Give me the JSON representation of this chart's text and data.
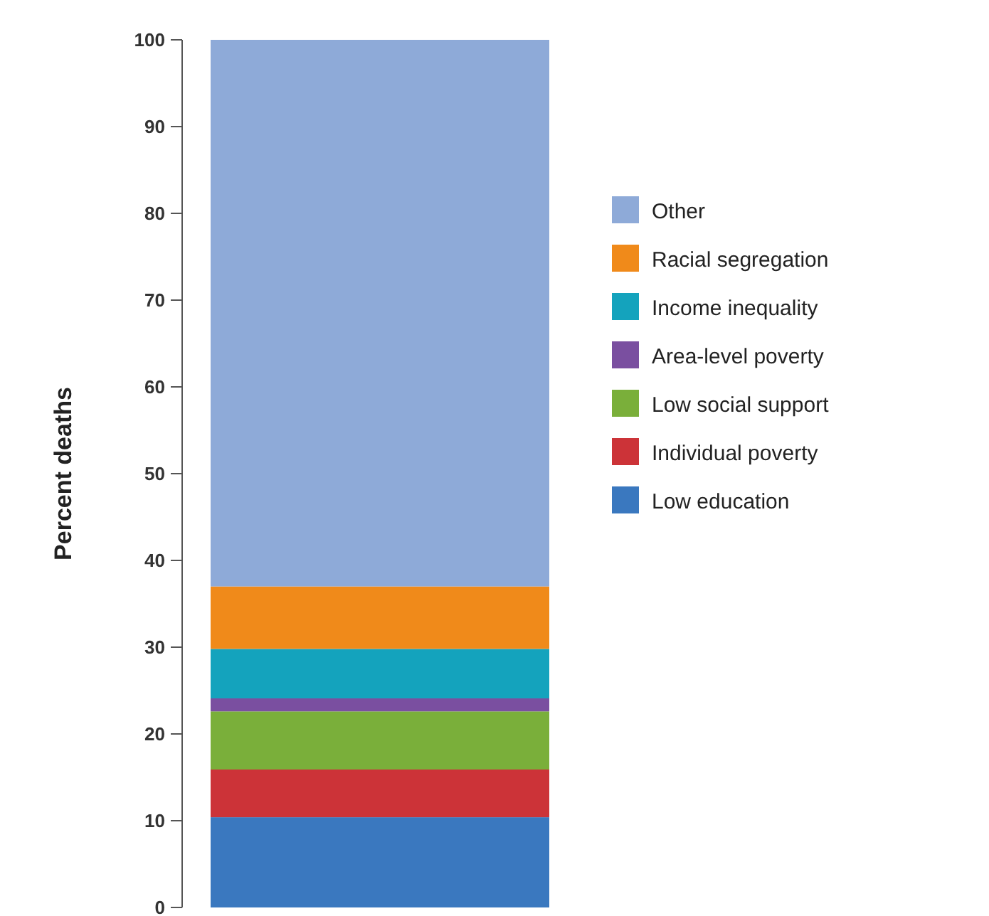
{
  "chart_data": {
    "type": "bar",
    "stacked": true,
    "ylabel": "Percent deaths",
    "categories": [
      null
    ],
    "series": [
      {
        "name": "Low education",
        "color": "#3a78bf",
        "values": [
          10.4
        ]
      },
      {
        "name": "Individual poverty",
        "color": "#cc3338",
        "values": [
          5.5
        ]
      },
      {
        "name": "Low social support",
        "color": "#7aaf3a",
        "values": [
          6.7
        ]
      },
      {
        "name": "Area-level poverty",
        "color": "#7a4fa0",
        "values": [
          1.5
        ]
      },
      {
        "name": "Income inequality",
        "color": "#14a3bd",
        "values": [
          5.7
        ]
      },
      {
        "name": "Racial segregation",
        "color": "#f08a1a",
        "values": [
          7.2
        ]
      },
      {
        "name": "Other",
        "color": "#8eaad8",
        "values": [
          63
        ]
      }
    ],
    "ylim": [
      0,
      100
    ],
    "yticks": [
      0,
      10,
      20,
      30,
      40,
      50,
      60,
      70,
      80,
      90,
      100
    ],
    "legend": "right",
    "grid": false
  }
}
